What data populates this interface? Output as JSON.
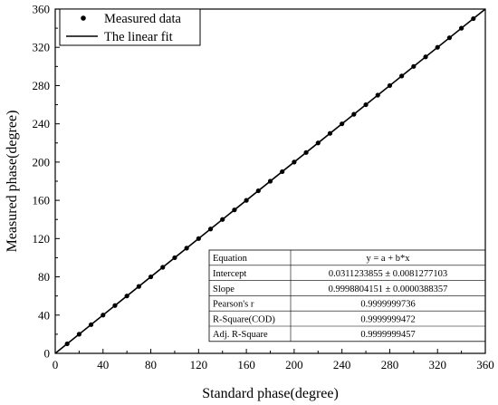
{
  "chart_data": {
    "type": "scatter",
    "xlabel": "Standard phase(degree)",
    "ylabel": "Measured phase(degree)",
    "xlim": [
      0,
      360
    ],
    "ylim": [
      0,
      360
    ],
    "xticks": [
      0,
      40,
      80,
      120,
      160,
      200,
      240,
      280,
      320,
      360
    ],
    "yticks": [
      0,
      40,
      80,
      120,
      160,
      200,
      240,
      280,
      320,
      360
    ],
    "grid": false,
    "legend_position": "top-left",
    "series": [
      {
        "name": "Measured data",
        "kind": "scatter",
        "x": [
          10,
          20,
          30,
          40,
          50,
          60,
          70,
          80,
          90,
          100,
          110,
          120,
          130,
          140,
          150,
          160,
          170,
          180,
          190,
          200,
          210,
          220,
          230,
          240,
          250,
          260,
          270,
          280,
          290,
          300,
          310,
          320,
          330,
          340,
          350
        ],
        "y": [
          10,
          20,
          30,
          40,
          50,
          60,
          70,
          80,
          90,
          100,
          110,
          120,
          130,
          140,
          150,
          160,
          170,
          180,
          190,
          200,
          210,
          220,
          230,
          240,
          250,
          260,
          270,
          280,
          290,
          300,
          310,
          320,
          330,
          340,
          350
        ]
      },
      {
        "name": "The linear fit",
        "kind": "line",
        "intercept": 0.0311233855,
        "slope": 0.9998804151,
        "x_range": [
          0,
          360
        ]
      }
    ],
    "fit_table": [
      {
        "label": "Equation",
        "value": "y = a + b*x"
      },
      {
        "label": "Intercept",
        "value": "0.0311233855 ± 0.0081277103"
      },
      {
        "label": "Slope",
        "value": "0.9998804151 ± 0.0000388357"
      },
      {
        "label": "Pearson's r",
        "value": "0.9999999736"
      },
      {
        "label": "R-Square(COD)",
        "value": "0.9999999472"
      },
      {
        "label": "Adj. R-Square",
        "value": "0.9999999457"
      }
    ]
  }
}
